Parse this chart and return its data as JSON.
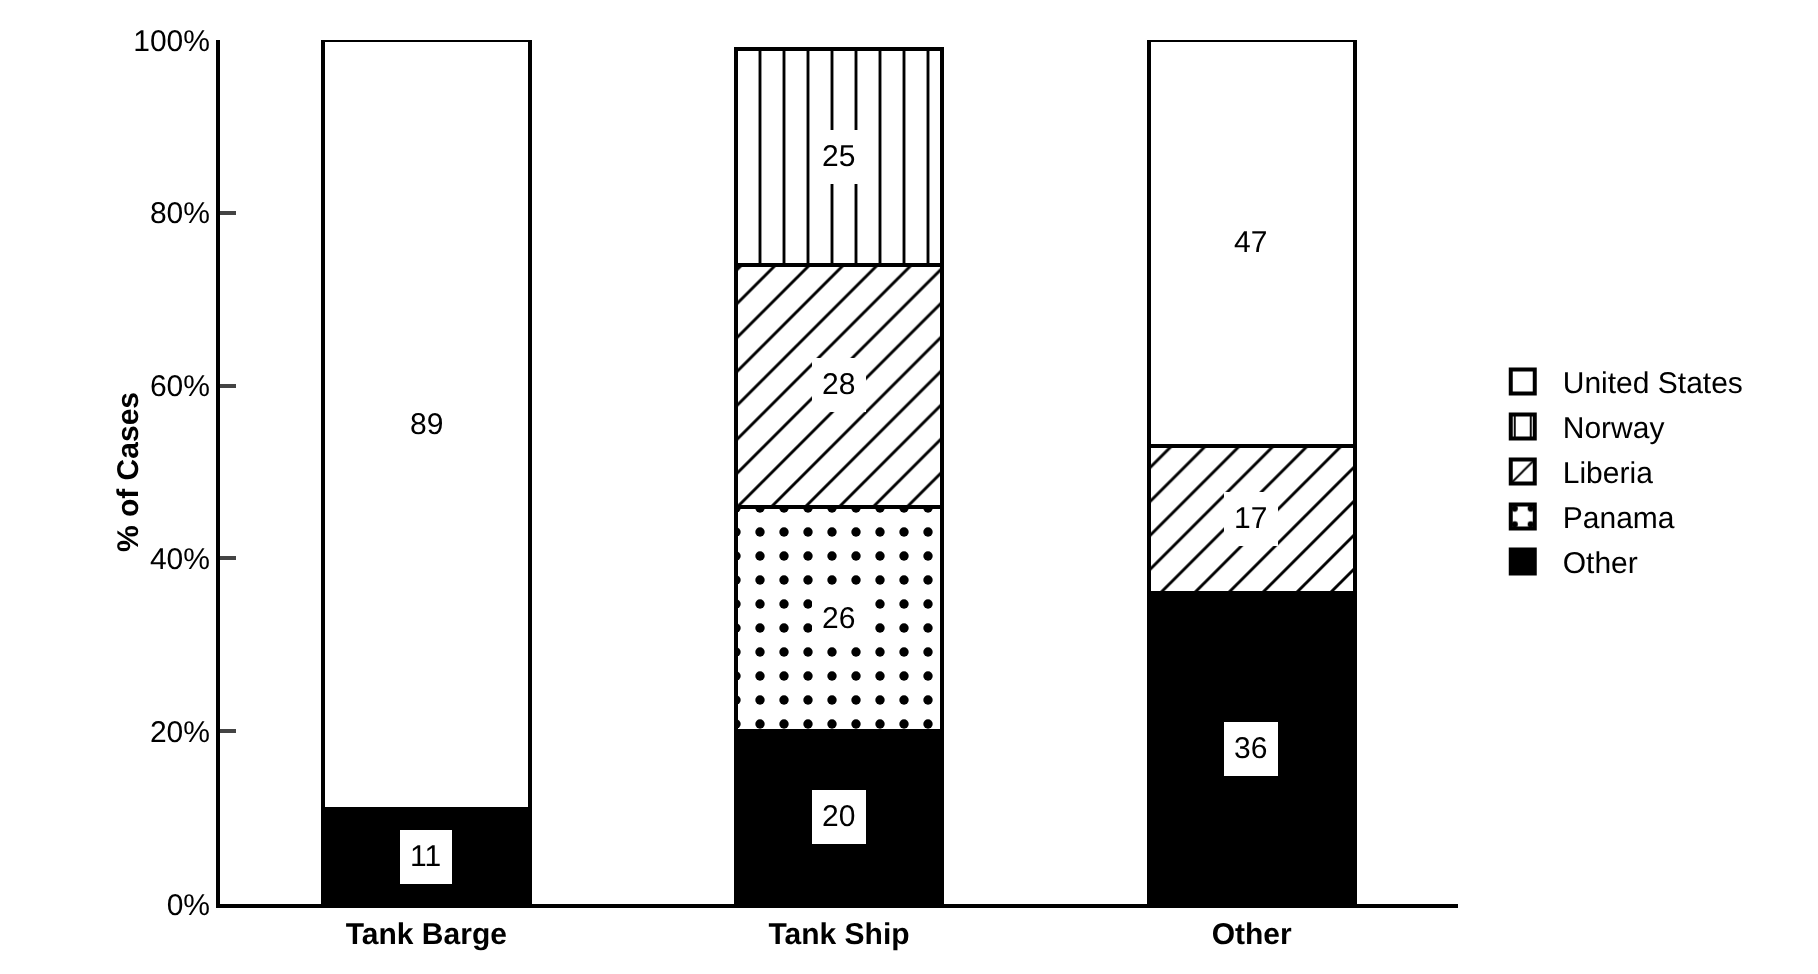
{
  "chart_data": {
    "type": "bar",
    "stacked": true,
    "ylabel": "% of Cases",
    "categories": [
      "Tank Barge",
      "Tank Ship",
      "Other"
    ],
    "series": [
      {
        "name": "Other",
        "color": "#000000",
        "values": [
          11,
          20,
          36
        ]
      },
      {
        "name": "Panama",
        "color": "#000000",
        "values": [
          null,
          26,
          null
        ]
      },
      {
        "name": "Liberia",
        "color": "#000000",
        "values": [
          null,
          28,
          17
        ]
      },
      {
        "name": "Norway",
        "color": "#000000",
        "values": [
          null,
          25,
          null
        ]
      },
      {
        "name": "United States",
        "color": "#ffffff",
        "values": [
          89,
          null,
          47
        ]
      }
    ],
    "ylim": [
      0,
      100
    ],
    "yticks": [
      {
        "value": 0,
        "label": "0%"
      },
      {
        "value": 20,
        "label": "20%"
      },
      {
        "value": 40,
        "label": "40%"
      },
      {
        "value": 60,
        "label": "60%"
      },
      {
        "value": 80,
        "label": "80%"
      },
      {
        "value": 100,
        "label": "100%"
      }
    ],
    "data_labels": true,
    "grid": false,
    "legend": "right"
  }
}
